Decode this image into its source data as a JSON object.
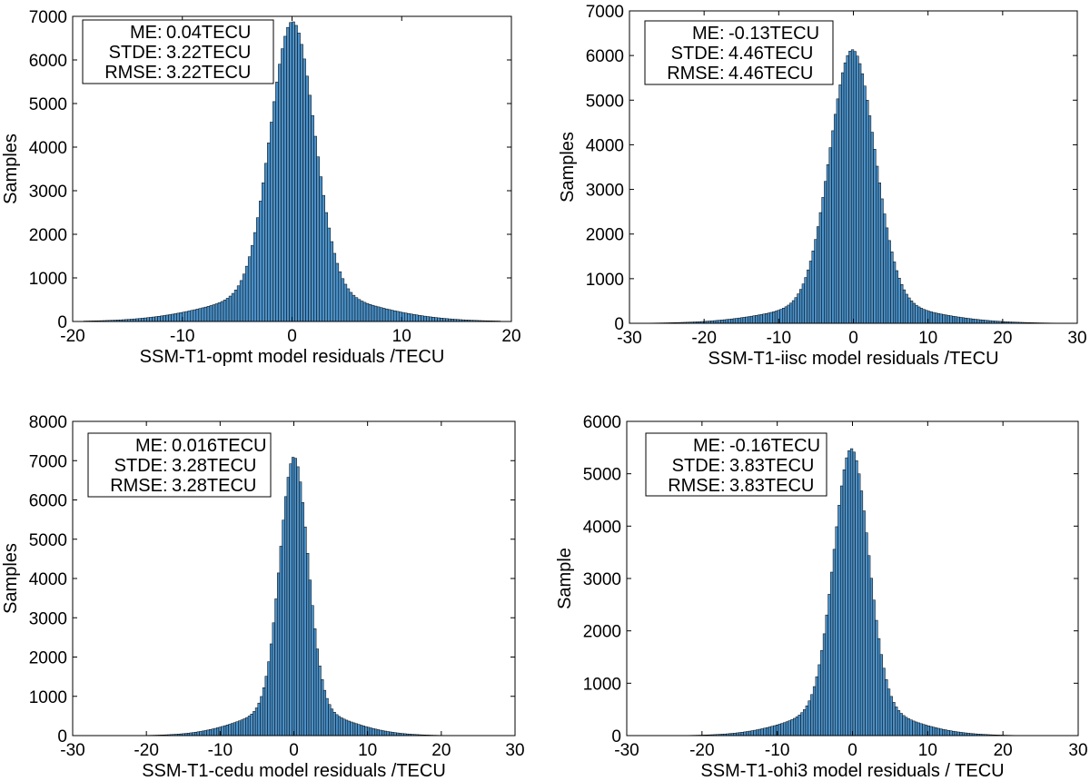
{
  "colors": {
    "bar_fill": "#4a90c8",
    "bar_edge": "#000000",
    "axis": "#000000",
    "background": "#ffffff"
  },
  "chart_data": [
    {
      "type": "bar",
      "panel": "top-left",
      "xlabel": "SSM-T1-opmt model residuals /TECU",
      "ylabel": "Samples",
      "xlim": [
        -20,
        20
      ],
      "ylim": [
        0,
        7000
      ],
      "xticks": [
        -20,
        -10,
        0,
        10,
        20
      ],
      "yticks": [
        0,
        1000,
        2000,
        3000,
        4000,
        5000,
        6000,
        7000
      ],
      "grid": false,
      "legend_position": "top-left",
      "stats": [
        {
          "name": "ME",
          "value": "0.04TECU"
        },
        {
          "name": "STDE",
          "value": "3.22TECU"
        },
        {
          "name": "RMSE",
          "value": "3.22TECU"
        }
      ],
      "distribution": {
        "range": [
          -19,
          19
        ],
        "bin_width": 0.25,
        "mean": 0.04,
        "peak": 6880,
        "core_sd": 2.0,
        "tail_fraction": 0.1,
        "tail_width": 6.5
      }
    },
    {
      "type": "bar",
      "panel": "top-right",
      "xlabel": "SSM-T1-iisc model residuals /TECU",
      "ylabel": "Samples",
      "xlim": [
        -30,
        30
      ],
      "ylim": [
        0,
        7000
      ],
      "xticks": [
        -30,
        -20,
        -10,
        0,
        10,
        20,
        30
      ],
      "yticks": [
        0,
        1000,
        2000,
        3000,
        4000,
        5000,
        6000,
        7000
      ],
      "grid": false,
      "legend_position": "top-left",
      "stats": [
        {
          "name": "ME",
          "value": "-0.13TECU"
        },
        {
          "name": "STDE",
          "value": "4.46TECU"
        },
        {
          "name": "RMSE",
          "value": "4.46TECU"
        }
      ],
      "distribution": {
        "range": [
          -28,
          28
        ],
        "bin_width": 0.33,
        "mean": -0.13,
        "peak": 6130,
        "core_sd": 3.0,
        "tail_fraction": 0.08,
        "tail_width": 9.0
      }
    },
    {
      "type": "bar",
      "panel": "bottom-left",
      "xlabel": "SSM-T1-cedu model residuals /TECU",
      "ylabel": "Samples",
      "xlim": [
        -30,
        30
      ],
      "ylim": [
        0,
        8000
      ],
      "xticks": [
        -30,
        -20,
        -10,
        0,
        10,
        20,
        30
      ],
      "yticks": [
        0,
        1000,
        2000,
        3000,
        4000,
        5000,
        6000,
        7000,
        8000
      ],
      "grid": false,
      "legend_position": "top-left",
      "stats": [
        {
          "name": "ME",
          "value": "0.016TECU"
        },
        {
          "name": "STDE",
          "value": "3.28TECU"
        },
        {
          "name": "RMSE",
          "value": "3.28TECU"
        }
      ],
      "distribution": {
        "range": [
          -27,
          27
        ],
        "bin_width": 0.33,
        "mean": 0.016,
        "peak": 7100,
        "core_sd": 1.9,
        "tail_fraction": 0.1,
        "tail_width": 6.5
      }
    },
    {
      "type": "bar",
      "panel": "bottom-right",
      "xlabel": "SSM-T1-ohi3 model residuals / TECU",
      "ylabel": "Sample",
      "xlim": [
        -30,
        30
      ],
      "ylim": [
        0,
        6000
      ],
      "xticks": [
        -30,
        -20,
        -10,
        0,
        10,
        20,
        30
      ],
      "yticks": [
        0,
        1000,
        2000,
        3000,
        4000,
        5000,
        6000
      ],
      "grid": false,
      "legend_position": "top-left",
      "stats": [
        {
          "name": "ME",
          "value": "-0.16TECU"
        },
        {
          "name": "STDE",
          "value": "3.83TECU"
        },
        {
          "name": "RMSE",
          "value": "3.83TECU"
        }
      ],
      "distribution": {
        "range": [
          -28,
          28
        ],
        "bin_width": 0.33,
        "mean": -0.16,
        "peak": 5480,
        "core_sd": 2.3,
        "tail_fraction": 0.1,
        "tail_width": 7.0
      }
    }
  ]
}
